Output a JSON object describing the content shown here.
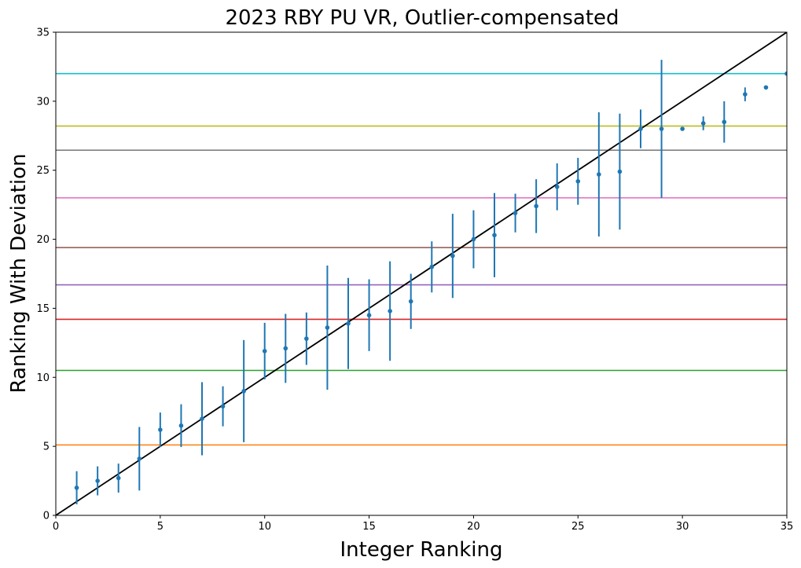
{
  "chart_data": {
    "type": "scatter",
    "title": "2023 RBY PU VR, Outlier-compensated",
    "xlabel": "Integer Ranking",
    "ylabel": "Ranking With Deviation",
    "xlim": [
      0,
      35
    ],
    "ylim": [
      0,
      35
    ],
    "xticks": [
      0,
      5,
      10,
      15,
      20,
      25,
      30,
      35
    ],
    "yticks": [
      0,
      5,
      10,
      15,
      20,
      25,
      30,
      35
    ],
    "grid": false,
    "legend": "none",
    "series": [
      {
        "marker_color": "#1f77b4",
        "points": [
          {
            "x": 1,
            "y": 2.0,
            "err": 1.2
          },
          {
            "x": 2,
            "y": 2.5,
            "err": 1.05
          },
          {
            "x": 3,
            "y": 2.7,
            "err": 1.05
          },
          {
            "x": 4,
            "y": 4.1,
            "err": 2.3
          },
          {
            "x": 5,
            "y": 6.2,
            "err": 1.25
          },
          {
            "x": 6,
            "y": 6.5,
            "err": 1.55
          },
          {
            "x": 7,
            "y": 7.0,
            "err": 2.65
          },
          {
            "x": 8,
            "y": 7.9,
            "err": 1.45
          },
          {
            "x": 9,
            "y": 9.0,
            "err": 3.7
          },
          {
            "x": 10,
            "y": 11.9,
            "err": 2.05
          },
          {
            "x": 11,
            "y": 12.1,
            "err": 2.5
          },
          {
            "x": 12,
            "y": 12.8,
            "err": 1.9
          },
          {
            "x": 13,
            "y": 13.6,
            "err": 4.5
          },
          {
            "x": 14,
            "y": 13.9,
            "err": 3.3
          },
          {
            "x": 15,
            "y": 14.5,
            "err": 2.6
          },
          {
            "x": 16,
            "y": 14.8,
            "err": 3.6
          },
          {
            "x": 17,
            "y": 15.5,
            "err": 2.0
          },
          {
            "x": 18,
            "y": 18.0,
            "err": 1.85
          },
          {
            "x": 19,
            "y": 18.8,
            "err": 3.05
          },
          {
            "x": 20,
            "y": 20.0,
            "err": 2.1
          },
          {
            "x": 21,
            "y": 20.3,
            "err": 3.05
          },
          {
            "x": 22,
            "y": 21.9,
            "err": 1.4
          },
          {
            "x": 23,
            "y": 22.4,
            "err": 1.95
          },
          {
            "x": 24,
            "y": 23.8,
            "err": 1.7
          },
          {
            "x": 25,
            "y": 24.2,
            "err": 1.7
          },
          {
            "x": 26,
            "y": 24.7,
            "err": 4.5
          },
          {
            "x": 27,
            "y": 24.9,
            "err": 4.2
          },
          {
            "x": 28,
            "y": 28.0,
            "err": 1.4
          },
          {
            "x": 29,
            "y": 28.0,
            "err": 5.0
          },
          {
            "x": 30,
            "y": 28.0,
            "err": 0.1
          },
          {
            "x": 31,
            "y": 28.4,
            "err": 0.5
          },
          {
            "x": 32,
            "y": 28.5,
            "err": 1.5
          },
          {
            "x": 33,
            "y": 30.5,
            "err": 0.5
          },
          {
            "x": 34,
            "y": 31.0,
            "err": 0.1
          },
          {
            "x": 35,
            "y": 32.0,
            "err": 0.1
          }
        ]
      }
    ],
    "reference_lines": {
      "diagonal": {
        "from": [
          0,
          0
        ],
        "to": [
          35,
          35
        ],
        "color": "#000000"
      },
      "horizontal": [
        {
          "y": 5.1,
          "color": "#ff7f0e"
        },
        {
          "y": 10.5,
          "color": "#2ca02c"
        },
        {
          "y": 14.2,
          "color": "#d62728"
        },
        {
          "y": 16.7,
          "color": "#9467bd"
        },
        {
          "y": 19.4,
          "color": "#8c564b"
        },
        {
          "y": 23.0,
          "color": "#e377c2"
        },
        {
          "y": 26.45,
          "color": "#7f7f7f"
        },
        {
          "y": 28.2,
          "color": "#bcbd22"
        },
        {
          "y": 32.0,
          "color": "#17becf"
        }
      ]
    }
  }
}
